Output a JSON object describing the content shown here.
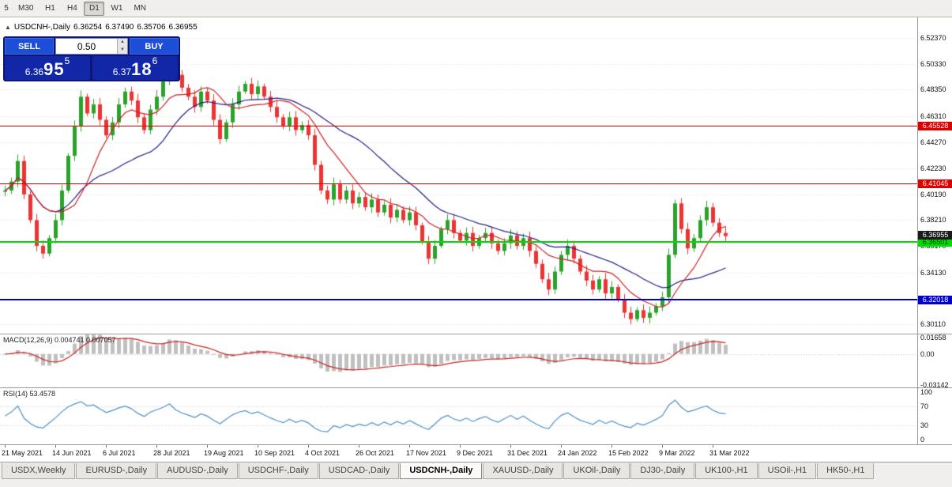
{
  "toolbar": {
    "timeframes": [
      {
        "label": "5",
        "active": false
      },
      {
        "label": "M30",
        "active": false
      },
      {
        "label": "H1",
        "active": false
      },
      {
        "label": "H4",
        "active": false
      },
      {
        "label": "D1",
        "active": true
      },
      {
        "label": "W1",
        "active": false
      },
      {
        "label": "MN",
        "active": false
      }
    ]
  },
  "chart_header": {
    "collapse_icon": "▲",
    "symbol": "USDCNH-,Daily",
    "open": "6.36254",
    "high": "6.37490",
    "low": "6.35706",
    "close": "6.36955"
  },
  "trade_panel": {
    "sell_label": "SELL",
    "buy_label": "BUY",
    "volume": "0.50",
    "sell_price": {
      "base": "6.36",
      "pips": "95",
      "sup": "5"
    },
    "buy_price": {
      "base": "6.37",
      "pips": "18",
      "sup": "6"
    }
  },
  "price_axis": {
    "labels": [
      {
        "text": "6.52370",
        "price": 6.5237
      },
      {
        "text": "6.50330",
        "price": 6.5033
      },
      {
        "text": "6.48350",
        "price": 6.4835
      },
      {
        "text": "6.46310",
        "price": 6.4631
      },
      {
        "text": "6.44270",
        "price": 6.4427
      },
      {
        "text": "6.42230",
        "price": 6.4223
      },
      {
        "text": "6.40190",
        "price": 6.4019
      },
      {
        "text": "6.38210",
        "price": 6.3821
      },
      {
        "text": "6.36170",
        "price": 6.3617
      },
      {
        "text": "6.34130",
        "price": 6.3413
      },
      {
        "text": "6.32090",
        "price": 6.3209
      },
      {
        "text": "6.30110",
        "price": 6.3011
      }
    ]
  },
  "levels": [
    {
      "label": "6.45528",
      "price": 6.45528,
      "color": "#dd0000",
      "text_color": "#ffffff",
      "thickness": 1
    },
    {
      "label": "6.41045",
      "price": 6.41045,
      "color": "#dd0000",
      "text_color": "#ffffff",
      "thickness": 1
    },
    {
      "label": "6.36501",
      "price": 6.36501,
      "color": "#00dc00",
      "text_color": "#003300",
      "thickness": 2
    },
    {
      "label": "6.32018",
      "price": 6.32018,
      "color": "#0000cd",
      "text_color": "#ffffff",
      "thickness": 2
    }
  ],
  "current_price_tag": {
    "label": "6.36955",
    "price": 6.36955,
    "color": "#1a1a1a",
    "text_color": "#ffffff"
  },
  "macd_panel": {
    "title": "MACD(12,26,9) 0.004741 0.007057",
    "axis_labels": [
      {
        "text": "0.01658",
        "value": 0.01658
      },
      {
        "text": "0.00",
        "value": 0
      },
      {
        "text": "-0.03142",
        "value": -0.03142
      }
    ]
  },
  "rsi_panel": {
    "title": "RSI(14) 53.4578",
    "axis_labels": [
      {
        "text": "100",
        "value": 100
      },
      {
        "text": "70",
        "value": 70
      },
      {
        "text": "30",
        "value": 30
      },
      {
        "text": "0",
        "value": 0
      }
    ],
    "levels": [
      70,
      30
    ]
  },
  "chart_data": {
    "type": "candlestick",
    "title": "USDCNH-,Daily",
    "x_labels": [
      "21 May 2021",
      "14 Jun 2021",
      "6 Jul 2021",
      "28 Jul 2021",
      "19 Aug 2021",
      "10 Sep 2021",
      "4 Oct 2021",
      "26 Oct 2021",
      "17 Nov 2021",
      "9 Dec 2021",
      "31 Dec 2021",
      "24 Jan 2022",
      "15 Feb 2022",
      "9 Mar 2022",
      "31 Mar 2022"
    ],
    "bars_per_label": 8,
    "ylim": [
      6.293,
      6.5335
    ],
    "first_open": 6.404,
    "closes": [
      6.405,
      6.412,
      6.428,
      6.402,
      6.382,
      6.362,
      6.356,
      6.368,
      6.382,
      6.405,
      6.432,
      6.455,
      6.478,
      6.465,
      6.472,
      6.46,
      6.448,
      6.458,
      6.472,
      6.482,
      6.475,
      6.462,
      6.452,
      6.468,
      6.478,
      6.49,
      6.512,
      6.495,
      6.485,
      6.478,
      6.47,
      6.482,
      6.475,
      6.46,
      6.445,
      6.458,
      6.472,
      6.482,
      6.488,
      6.48,
      6.486,
      6.478,
      6.47,
      6.462,
      6.455,
      6.462,
      6.452,
      6.456,
      6.448,
      6.425,
      6.405,
      6.398,
      6.41,
      6.398,
      6.405,
      6.395,
      6.4,
      6.392,
      6.398,
      6.388,
      6.394,
      6.384,
      6.39,
      6.382,
      6.388,
      6.378,
      6.365,
      6.352,
      6.362,
      6.375,
      6.382,
      6.372,
      6.366,
      6.372,
      6.362,
      6.368,
      6.372,
      6.364,
      6.358,
      6.364,
      6.37,
      6.362,
      6.368,
      6.358,
      6.348,
      6.336,
      6.328,
      6.342,
      6.355,
      6.362,
      6.352,
      6.342,
      6.335,
      6.328,
      6.336,
      6.325,
      6.33,
      6.32,
      6.31,
      6.305,
      6.312,
      6.306,
      6.31,
      6.315,
      6.322,
      6.355,
      6.395,
      6.375,
      6.36,
      6.368,
      6.382,
      6.392,
      6.38,
      6.372,
      6.3696
    ],
    "last_ohlc": {
      "open": 6.36254,
      "high": 6.3749,
      "low": 6.35706,
      "close": 6.36955
    }
  },
  "bottom_tabs": [
    {
      "label": "USDX,Weekly",
      "active": false
    },
    {
      "label": "EURUSD-,Daily",
      "active": false
    },
    {
      "label": "AUDUSD-,Daily",
      "active": false
    },
    {
      "label": "USDCHF-,Daily",
      "active": false
    },
    {
      "label": "USDCAD-,Daily",
      "active": false
    },
    {
      "label": "USDCNH-,Daily",
      "active": true
    },
    {
      "label": "XAUUSD-,Daily",
      "active": false
    },
    {
      "label": "UKOil-,Daily",
      "active": false
    },
    {
      "label": "DJ30-,Daily",
      "active": false
    },
    {
      "label": "UK100-,H1",
      "active": false
    },
    {
      "label": "USOil-,H1",
      "active": false
    },
    {
      "label": "HK50-,H1",
      "active": false
    }
  ],
  "colors": {
    "candle_up": "#2ba32b",
    "candle_down": "#ee3333",
    "ma_fast": "#cc2222",
    "ma_slow": "#20208a",
    "macd_hist": "#c0c0c0",
    "macd_signal": "#cc2222",
    "rsi_line": "#4f8fca",
    "grid": "#dcdcdc"
  }
}
